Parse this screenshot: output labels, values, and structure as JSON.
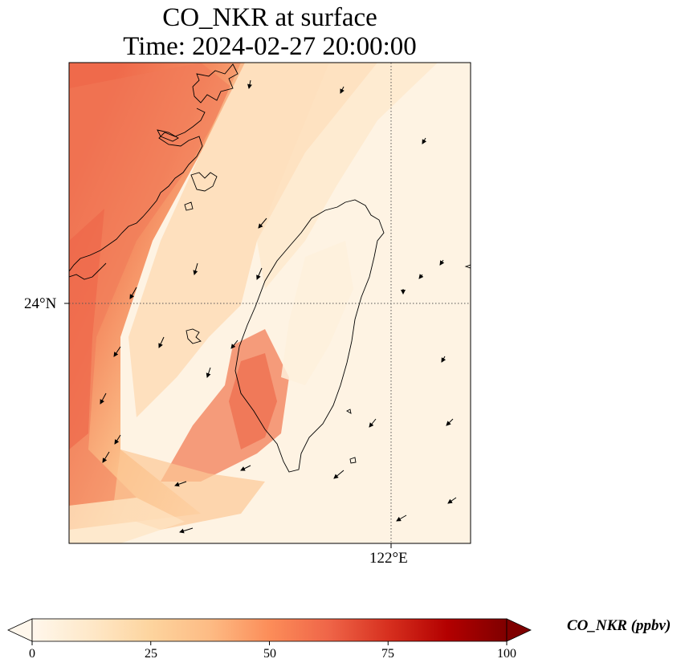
{
  "title": {
    "line1": "CO_NKR at surface",
    "line2": "Time: 2024-02-27 20:00:00"
  },
  "map": {
    "variable": "CO_NKR",
    "level": "surface",
    "lat_gridline": "24°N",
    "lon_gridline": "122°E",
    "background_color": "#fef3e3",
    "coastline_color": "#000000",
    "colormap": "OrRd"
  },
  "colorbar": {
    "label": "CO_NKR (ppbv)",
    "min": 0,
    "max": 100,
    "extend": "both",
    "ticks": [
      "0",
      "25",
      "50",
      "75",
      "100"
    ],
    "colors": [
      "#fff7ec",
      "#fee8c8",
      "#fdd49e",
      "#fdbb84",
      "#fc8d59",
      "#ef6548",
      "#d7301f",
      "#b30000",
      "#7f0000"
    ]
  }
}
